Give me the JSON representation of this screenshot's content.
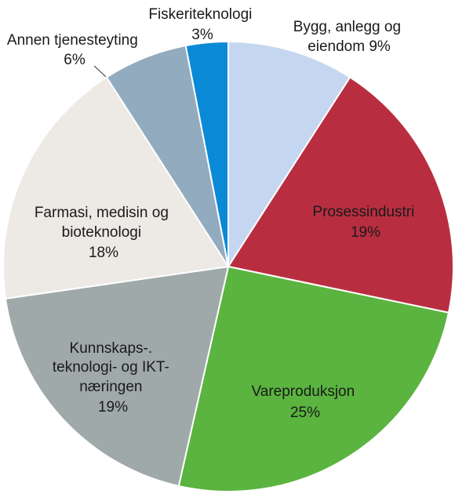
{
  "chart_data": {
    "type": "pie",
    "title": "",
    "slices": [
      {
        "label": "Bygg, anlegg og eiendom",
        "value": 9,
        "value_label": "9%",
        "color": "#c5d7f0"
      },
      {
        "label": "Prosessindustri",
        "value": 19,
        "value_label": "19%",
        "color": "#b82e40"
      },
      {
        "label": "Vareproduksjon",
        "value": 25,
        "value_label": "25%",
        "color": "#5ab43f"
      },
      {
        "label": "Kunnskaps-. teknologi- og IKT-næringen",
        "value": 19,
        "value_label": "19%",
        "color": "#9fa9a9"
      },
      {
        "label": "Farmasi, medisin og bioteknologi",
        "value": 18,
        "value_label": "18%",
        "color": "#ede9e4"
      },
      {
        "label": "Annen tjenesteyting",
        "value": 6,
        "value_label": "6%",
        "color": "#93abbf"
      },
      {
        "label": "Fiskeriteknologi",
        "value": 3,
        "value_label": "3%",
        "color": "#0a8ad6"
      }
    ],
    "start_direction": "12 o'clock, clockwise",
    "legend": "none (direct labels)"
  }
}
